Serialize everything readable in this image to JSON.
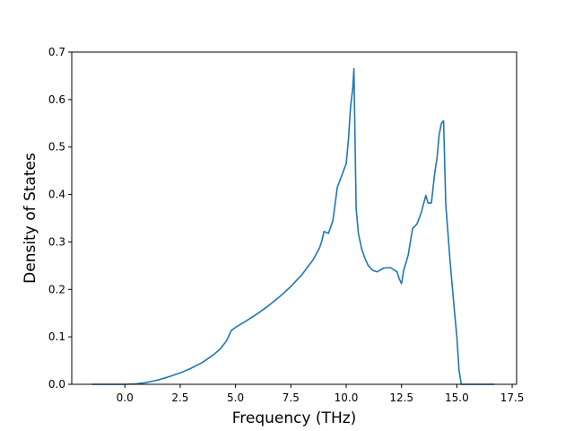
{
  "chart_data": {
    "type": "line",
    "title": "",
    "xlabel": "Frequency (THz)",
    "ylabel": "Density of States",
    "xlim": [
      -2.4,
      17.7
    ],
    "ylim": [
      0.0,
      0.7
    ],
    "xticks": [
      "0.0",
      "2.5",
      "5.0",
      "7.5",
      "10.0",
      "12.5",
      "15.0",
      "17.5"
    ],
    "yticks": [
      "0.0",
      "0.1",
      "0.2",
      "0.3",
      "0.4",
      "0.5",
      "0.6",
      "0.7"
    ],
    "grid": false,
    "legend": "none",
    "series": [
      {
        "color": "#1f77b4",
        "x": [
          -1.5,
          0.0,
          0.5,
          1.0,
          1.5,
          2.0,
          2.5,
          3.0,
          3.5,
          4.0,
          4.3,
          4.6,
          4.8,
          5.0,
          5.5,
          6.0,
          6.5,
          7.0,
          7.5,
          8.0,
          8.5,
          8.8,
          8.9,
          9.0,
          9.2,
          9.4,
          9.6,
          9.8,
          10.0,
          10.1,
          10.2,
          10.3,
          10.35,
          10.45,
          10.55,
          10.7,
          10.85,
          11.0,
          11.2,
          11.4,
          11.7,
          12.0,
          12.3,
          12.4,
          12.5,
          12.6,
          12.8,
          13.0,
          13.2,
          13.4,
          13.6,
          13.7,
          13.85,
          14.0,
          14.1,
          14.2,
          14.3,
          14.4,
          14.5,
          14.7,
          14.9,
          15.0,
          15.1,
          15.2,
          15.5,
          16.0,
          16.7
        ],
        "y": [
          0.0,
          0.0,
          0.001,
          0.004,
          0.009,
          0.016,
          0.024,
          0.034,
          0.046,
          0.062,
          0.074,
          0.092,
          0.113,
          0.12,
          0.134,
          0.149,
          0.166,
          0.185,
          0.206,
          0.231,
          0.262,
          0.288,
          0.302,
          0.322,
          0.318,
          0.345,
          0.415,
          0.44,
          0.465,
          0.515,
          0.585,
          0.625,
          0.665,
          0.37,
          0.318,
          0.285,
          0.265,
          0.25,
          0.24,
          0.237,
          0.245,
          0.246,
          0.237,
          0.222,
          0.212,
          0.24,
          0.272,
          0.328,
          0.338,
          0.363,
          0.398,
          0.382,
          0.382,
          0.445,
          0.476,
          0.525,
          0.55,
          0.555,
          0.38,
          0.255,
          0.15,
          0.1,
          0.03,
          0.0,
          0.0,
          0.0,
          0.0
        ]
      }
    ]
  }
}
